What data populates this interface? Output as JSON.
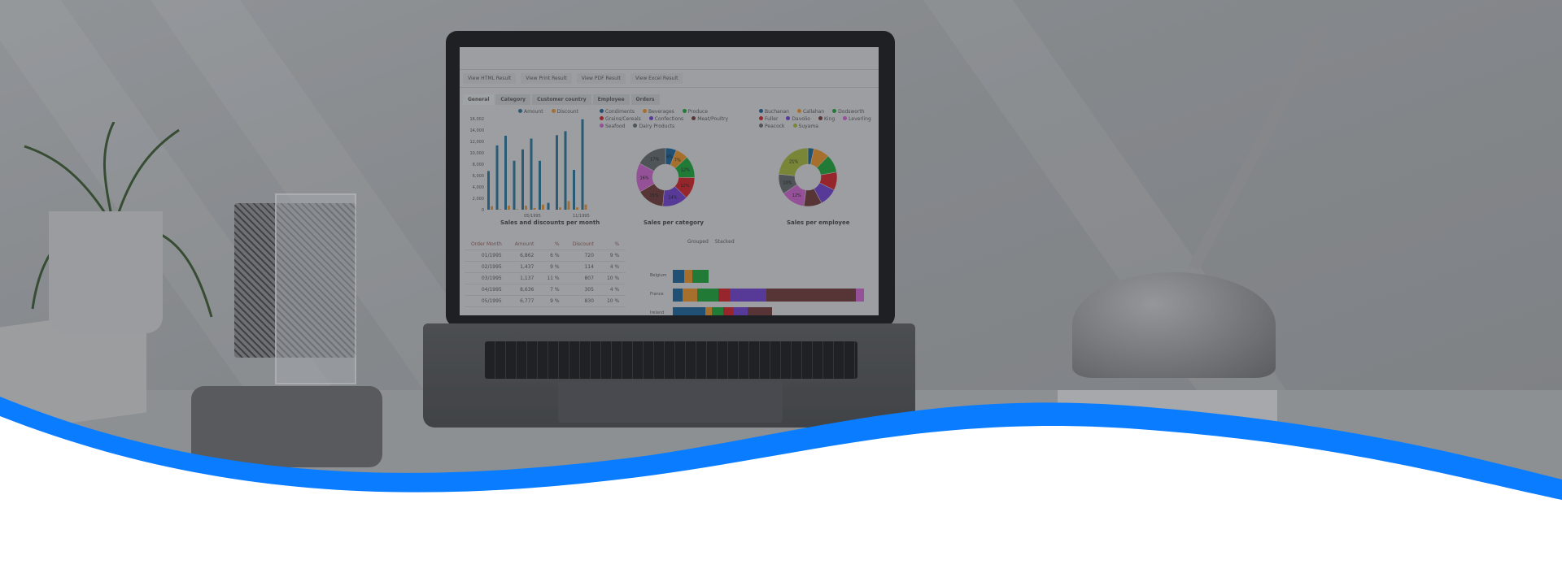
{
  "screen": {
    "buttons": [
      "View HTML Result",
      "View Print Result",
      "View PDF Result",
      "View Excel Result"
    ],
    "tabs": [
      "General",
      "Category",
      "Customer country",
      "Employee",
      "Orders"
    ],
    "bar_chart": {
      "title": "Sales and discounts per month",
      "legend": [
        "Amount",
        "Discount"
      ],
      "yticks": [
        "16,002",
        "14,000",
        "12,000",
        "10,000",
        "8,000",
        "6,000",
        "4,000",
        "2,000",
        "0"
      ],
      "xticks": [
        "05/1995",
        "11/1995"
      ],
      "amount": [
        6800,
        11300,
        13000,
        8600,
        10600,
        12500,
        8600,
        1200,
        13100,
        13800,
        7000,
        15900
      ],
      "discount": [
        600,
        100,
        700,
        100,
        700,
        300,
        900,
        0,
        400,
        1500,
        400,
        900
      ],
      "colors": {
        "amount": "#2c6e8e",
        "discount": "#d08a3a"
      }
    },
    "category_pie": {
      "title": "Sales per category",
      "legend": [
        "Condiments",
        "Beverages",
        "Produce",
        "Grains/Cereals",
        "Confections",
        "Meat/Poultry",
        "Seafood",
        "Dairy Products"
      ],
      "slices": [
        {
          "label": "6%",
          "value": 6,
          "color": "#1f5f8f"
        },
        {
          "label": "7%",
          "value": 7,
          "color": "#d88a2a"
        },
        {
          "label": "12%",
          "value": 12,
          "color": "#1f9a3a"
        },
        {
          "label": "12%",
          "value": 12,
          "color": "#c2252a"
        },
        {
          "label": "14%",
          "value": 14,
          "color": "#6a3fc0"
        },
        {
          "label": "15%",
          "value": 15,
          "color": "#6a3a38"
        },
        {
          "label": "16%",
          "value": 16,
          "color": "#c060c0"
        },
        {
          "label": "17%",
          "value": 17,
          "color": "#5e6466"
        }
      ]
    },
    "employee_pie": {
      "title": "Sales per employee",
      "legend": [
        "Buchanan",
        "Callahan",
        "Dodsworth",
        "Fuller",
        "Davolio",
        "King",
        "Leverling",
        "Peacock",
        "Suyama"
      ],
      "slices": [
        {
          "label": "",
          "value": 3,
          "color": "#1f5f8f"
        },
        {
          "label": "",
          "value": 8,
          "color": "#d88a2a"
        },
        {
          "label": "",
          "value": 9,
          "color": "#1f9a3a"
        },
        {
          "label": "",
          "value": 9,
          "color": "#c2252a"
        },
        {
          "label": "",
          "value": 9,
          "color": "#6a3fc0"
        },
        {
          "label": "",
          "value": 9,
          "color": "#6a3a38"
        },
        {
          "label": "12%",
          "value": 12,
          "color": "#c060c0"
        },
        {
          "label": "10%",
          "value": 10,
          "color": "#5e6466"
        },
        {
          "label": "21%",
          "value": 21,
          "color": "#9aaa3a"
        }
      ]
    },
    "table": {
      "headers": [
        "Order Month",
        "Amount",
        "%",
        "Discount",
        "%"
      ],
      "rows": [
        [
          "01/1995",
          "6,862",
          "6 %",
          "720",
          "9 %"
        ],
        [
          "02/1995",
          "1,437",
          "9 %",
          "114",
          "4 %"
        ],
        [
          "03/1995",
          "1,137",
          "11 %",
          "807",
          "10 %"
        ],
        [
          "04/1995",
          "8,636",
          "7 %",
          "305",
          "4 %"
        ],
        [
          "05/1995",
          "6,777",
          "9 %",
          "830",
          "10 %"
        ]
      ]
    },
    "stacked": {
      "toggle": [
        "Grouped",
        "Stacked"
      ],
      "categories": [
        "Belgium",
        "France",
        "Ireland"
      ]
    }
  },
  "colors": {
    "wave": "#0a7cff",
    "overlay": "#a9acae"
  }
}
